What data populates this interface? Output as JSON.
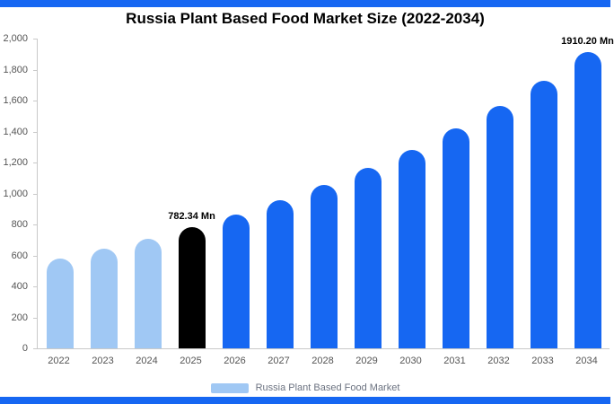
{
  "page": {
    "background": "#ffffff",
    "top_bar_color": "#1667F2",
    "bottom_bar_color": "#1667F2"
  },
  "title": "Russia Plant Based Food Market Size (2022-2034)",
  "legend": {
    "label": "Russia Plant Based Food Market",
    "swatch_color": "#A0C8F4"
  },
  "colors": {
    "accent_blue": "#1667F2",
    "light_blue": "#A0C8F4",
    "highlight_black": "#000000",
    "axis_gray": "#c9c9c9",
    "label_gray": "#555555"
  },
  "chart_data": {
    "type": "bar",
    "title": "Russia Plant Based Food Market Size (2022-2034)",
    "unit": "Mn",
    "categories": [
      "2022",
      "2023",
      "2024",
      "2025",
      "2026",
      "2027",
      "2028",
      "2029",
      "2030",
      "2031",
      "2032",
      "2033",
      "2034"
    ],
    "values": [
      581,
      641,
      708,
      782.34,
      864,
      954,
      1053,
      1163,
      1284,
      1418,
      1566,
      1729,
      1910.2
    ],
    "bar_colors": [
      "#A0C8F4",
      "#A0C8F4",
      "#A0C8F4",
      "#000000",
      "#1667F2",
      "#1667F2",
      "#1667F2",
      "#1667F2",
      "#1667F2",
      "#1667F2",
      "#1667F2",
      "#1667F2",
      "#1667F2"
    ],
    "data_labels": {
      "2025": "782.34 Mn",
      "2034": "1910.20 Mn"
    },
    "ylim": [
      0,
      2000
    ],
    "ytick_interval": 200,
    "ytick_labels": [
      "0",
      "200",
      "400",
      "600",
      "800",
      "1,000",
      "1,200",
      "1,400",
      "1,600",
      "1,800",
      "2,000"
    ],
    "xlabel": "",
    "ylabel": "",
    "grid": false,
    "legend_position": "bottom",
    "legend_entries": [
      "Russia Plant Based Food Market"
    ]
  }
}
